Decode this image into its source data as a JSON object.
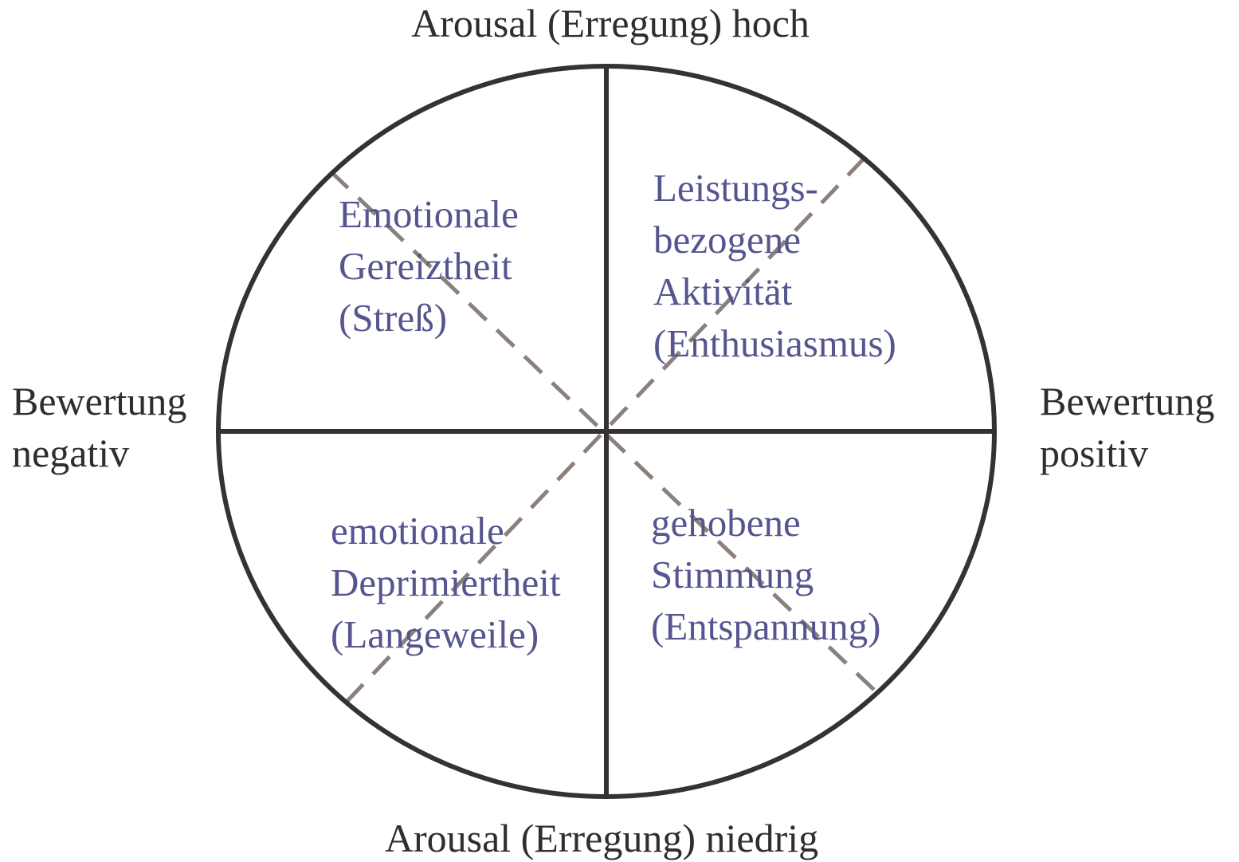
{
  "axes": {
    "top": "Arousal (Erregung) hoch",
    "bottom": "Arousal (Erregung) niedrig",
    "left": [
      "Bewertung",
      "negativ"
    ],
    "right": [
      "Bewertung",
      "positiv"
    ]
  },
  "quadrants": [
    {
      "lines": [
        "Emotionale",
        "Gereiztheit",
        "(Streß)"
      ]
    },
    {
      "lines": [
        "Leistungs-",
        "bezogene",
        "Aktivität",
        "(Enthusiasmus)"
      ]
    },
    {
      "lines": [
        "emotionale",
        "Deprimiertheit",
        "(Langeweile)"
      ]
    },
    {
      "lines": [
        "gehobene",
        "Stimmung",
        "(Entspannung)"
      ]
    }
  ]
}
